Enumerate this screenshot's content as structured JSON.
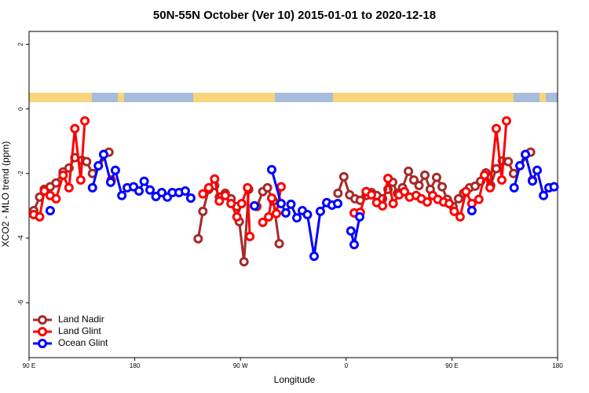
{
  "chart_data": {
    "type": "line",
    "title": "50N-55N October (Ver 10)   2015-01-01 to 2020-12-18",
    "x_label": "Longitude",
    "y_label": "XCO2 - MLO trend (ppm)",
    "xlim": [
      90,
      540
    ],
    "ylim": [
      -7.7,
      2.4
    ],
    "xticks": [
      {
        "value": 90,
        "label": "90 E"
      },
      {
        "value": 180,
        "label": "180"
      },
      {
        "value": 270,
        "label": "90 W"
      },
      {
        "value": 360,
        "label": "0"
      },
      {
        "value": 450,
        "label": "90 E"
      },
      {
        "value": 540,
        "label": "180"
      }
    ],
    "yticks": [
      2,
      0,
      -2,
      -4,
      -6
    ],
    "legend": "bottom-left",
    "series": [
      {
        "name": "Land Nadir",
        "color": "#a52a2a",
        "x": [
          94,
          99,
          103,
          108,
          113,
          119,
          124,
          129,
          135,
          139,
          144,
          158,
          null,
          234,
          238,
          243,
          248,
          252,
          257,
          262,
          267,
          269,
          273,
          277,
          null,
          284,
          289,
          293,
          298,
          303,
          null,
          353,
          358,
          363,
          367.5,
          372,
          377,
          381.6,
          386,
          391,
          395.6,
          399.6,
          403.6,
          408,
          413,
          417.6,
          422,
          427,
          431.6,
          437,
          441.7,
          446,
          451,
          455.7,
          460,
          465,
          469.8,
          474.5,
          479,
          483,
          487.8,
          493,
          498,
          502.5,
          517
        ],
        "values": [
          -3.15,
          -2.73,
          -2.49,
          -2.41,
          -2.29,
          -1.95,
          -1.83,
          -1.51,
          -1.59,
          -1.63,
          -2.0,
          -1.34,
          null,
          -4.02,
          -3.17,
          -2.49,
          -2.37,
          -2.73,
          -2.61,
          -2.78,
          -3.02,
          -3.49,
          -4.73,
          -2.49,
          null,
          -3.02,
          -2.56,
          -2.44,
          -2.85,
          -4.17,
          null,
          -2.61,
          -2.1,
          -2.66,
          -2.78,
          -2.83,
          -2.68,
          -2.59,
          -2.68,
          -2.78,
          -2.49,
          -2.27,
          -2.61,
          -2.44,
          -1.93,
          -2.2,
          -2.37,
          -2.05,
          -2.49,
          -2.12,
          -2.41,
          -2.8,
          -3.02,
          -2.78,
          -2.61,
          -2.44,
          -2.39,
          -2.24,
          -1.98,
          -2.37,
          -1.85,
          -1.61,
          -1.63,
          -2.0,
          -1.34
        ]
      },
      {
        "name": "Land Glint",
        "color": "#ff0000",
        "x": [
          94,
          99,
          103,
          108,
          113,
          119,
          124,
          129,
          134,
          137.5,
          null,
          160,
          null,
          238,
          243,
          248,
          252,
          257,
          262,
          267,
          271,
          276,
          278,
          null,
          289,
          294,
          296.6,
          300.6,
          304.6,
          null,
          366.8,
          372,
          377,
          381.5,
          386,
          391,
          395.6,
          400,
          405,
          409.6,
          414,
          419.6,
          424,
          429,
          433.7,
          438,
          443,
          447.7,
          452,
          457,
          462,
          467,
          473,
          477.8,
          482.5,
          487.8,
          492.5,
          496.5,
          null,
          518.6
        ],
        "values": [
          -3.27,
          -3.34,
          -2.54,
          -2.68,
          -2.78,
          -2.05,
          -2.44,
          -0.61,
          -2.2,
          -0.37,
          null,
          -2.2,
          null,
          -2.63,
          -2.44,
          -2.17,
          -2.85,
          -2.68,
          -2.93,
          -3.34,
          -2.93,
          -2.44,
          -3.95,
          null,
          -3.51,
          -3.34,
          -2.76,
          -3.24,
          -2.41,
          null,
          -3.22,
          -3.2,
          -2.56,
          -2.66,
          -2.9,
          -3.0,
          -2.15,
          -2.93,
          -2.66,
          -2.56,
          -2.73,
          -2.68,
          -2.78,
          -2.88,
          -2.68,
          -2.8,
          -2.88,
          -2.93,
          -3.17,
          -3.34,
          -2.56,
          -2.93,
          -2.8,
          -2.05,
          -2.44,
          -0.61,
          -2.2,
          -0.37,
          null,
          -2.2
        ]
      },
      {
        "name": "Ocean Glint",
        "color": "#0000ff",
        "x": [
          108,
          null,
          144,
          149,
          153.5,
          159.5,
          163.5,
          169,
          173.6,
          179,
          183.6,
          188,
          193,
          198,
          203,
          207.7,
          212,
          217.7,
          223,
          227.7,
          null,
          281.9,
          null,
          296.6,
          304.6,
          308.6,
          313,
          318,
          322.7,
          327,
          332.7,
          338,
          343.4,
          348,
          352.8,
          null,
          364,
          366.8,
          371.5,
          null,
          467,
          null,
          503,
          507.9,
          512.6,
          518.6,
          522.6,
          528,
          532.6,
          537
        ],
        "values": [
          -3.15,
          null,
          -2.44,
          -1.76,
          -1.41,
          -2.27,
          -1.9,
          -2.68,
          -2.44,
          -2.41,
          -2.54,
          -2.24,
          -2.51,
          -2.71,
          -2.59,
          -2.73,
          -2.59,
          -2.59,
          -2.54,
          -2.76,
          null,
          -3.0,
          null,
          -1.88,
          -2.93,
          -3.22,
          -2.95,
          -3.37,
          -3.15,
          -3.27,
          -4.56,
          -3.17,
          -2.9,
          -2.98,
          -2.93,
          null,
          -3.78,
          -4.2,
          -3.34,
          null,
          -3.15,
          null,
          -2.44,
          -1.76,
          -1.41,
          -2.23,
          -1.9,
          -2.68,
          -2.44,
          -2.41
        ]
      }
    ]
  }
}
